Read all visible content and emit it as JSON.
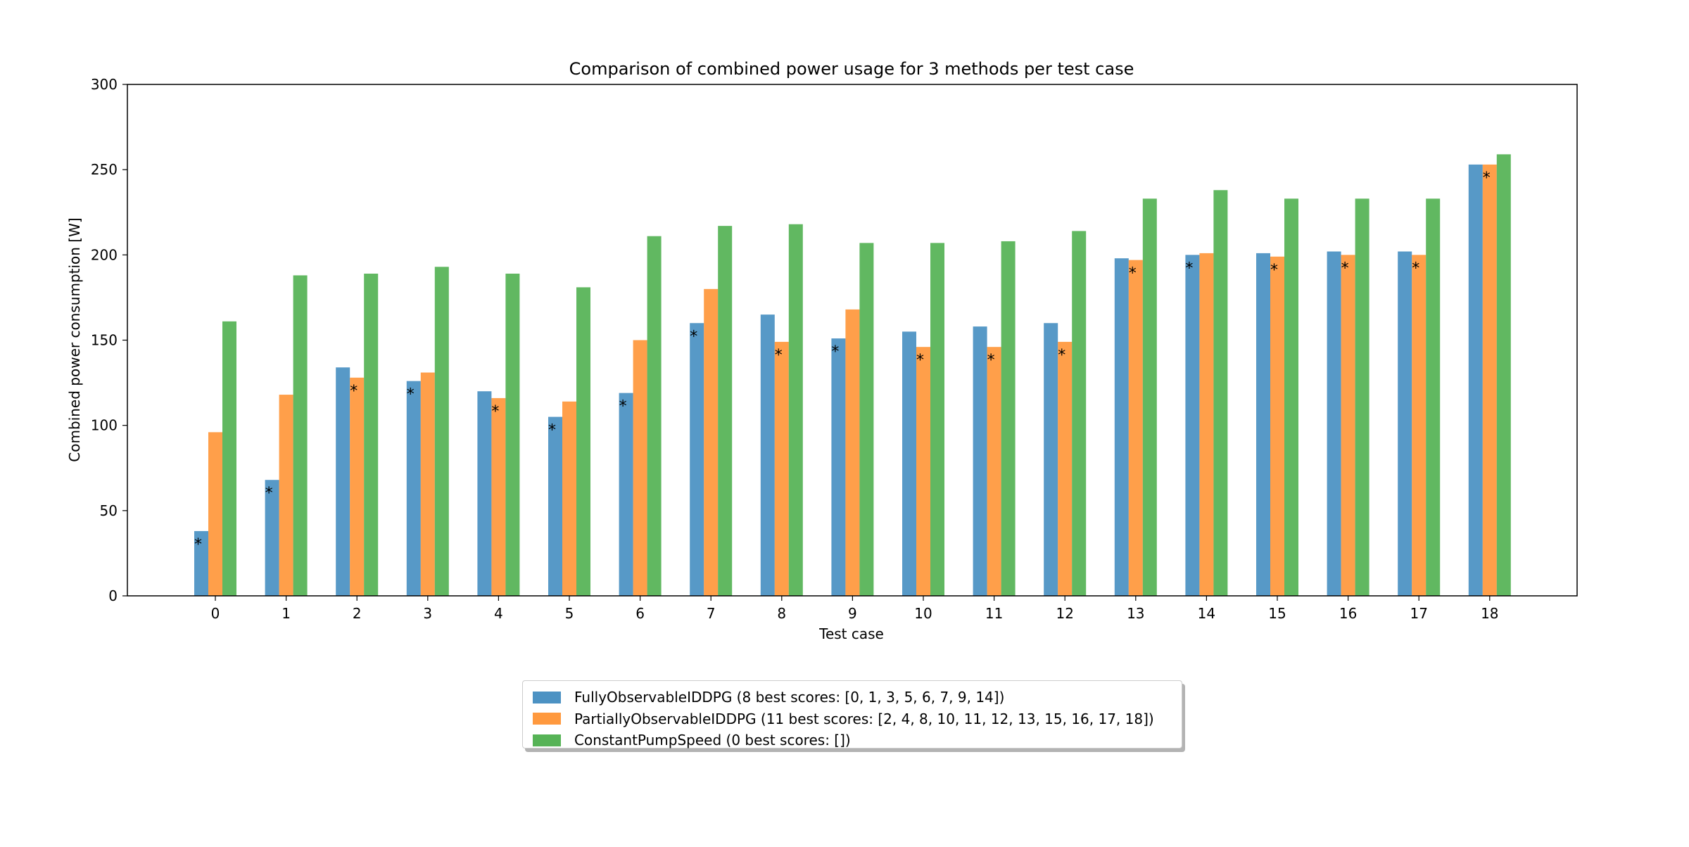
{
  "chart_data": {
    "type": "bar",
    "title": "Comparison of combined power usage for 3 methods per test case",
    "xlabel": "Test case",
    "ylabel": "Combined power consumption [W]",
    "ylim": [
      0,
      300
    ],
    "yticks": [
      "0",
      "50",
      "100",
      "150",
      "200",
      "250",
      "300"
    ],
    "categories": [
      "0",
      "1",
      "2",
      "3",
      "4",
      "5",
      "6",
      "7",
      "8",
      "9",
      "10",
      "11",
      "12",
      "13",
      "14",
      "15",
      "16",
      "17",
      "18"
    ],
    "grid": false,
    "legend_position": "below",
    "best_marker": "*",
    "series": [
      {
        "name": "FullyObservableIDDPG",
        "legend_label": "FullyObservableIDDPG (8 best scores: [0, 1, 3, 5, 6, 7, 9, 14])",
        "color": "#1f77b4",
        "values": [
          38,
          68,
          134,
          126,
          120,
          105,
          119,
          160,
          165,
          151,
          155,
          158,
          160,
          198,
          200,
          201,
          202,
          202,
          253
        ],
        "best": [
          0,
          1,
          3,
          5,
          6,
          7,
          9,
          14
        ]
      },
      {
        "name": "PartiallyObservableIDDPG",
        "legend_label": "PartiallyObservableIDDPG (11 best scores: [2, 4, 8, 10, 11, 12, 13, 15, 16, 17, 18])",
        "color": "#ff7f0e",
        "values": [
          96,
          118,
          128,
          131,
          116,
          114,
          150,
          180,
          149,
          168,
          146,
          146,
          149,
          197,
          201,
          199,
          200,
          200,
          253
        ],
        "best": [
          2,
          4,
          8,
          10,
          11,
          12,
          13,
          15,
          16,
          17,
          18
        ]
      },
      {
        "name": "ConstantPumpSpeed",
        "legend_label": "ConstantPumpSpeed (0 best scores: [])",
        "color": "#2ca02c",
        "values": [
          161,
          188,
          189,
          193,
          189,
          181,
          211,
          217,
          218,
          207,
          207,
          208,
          214,
          233,
          238,
          233,
          233,
          233,
          259
        ],
        "best": []
      }
    ]
  }
}
